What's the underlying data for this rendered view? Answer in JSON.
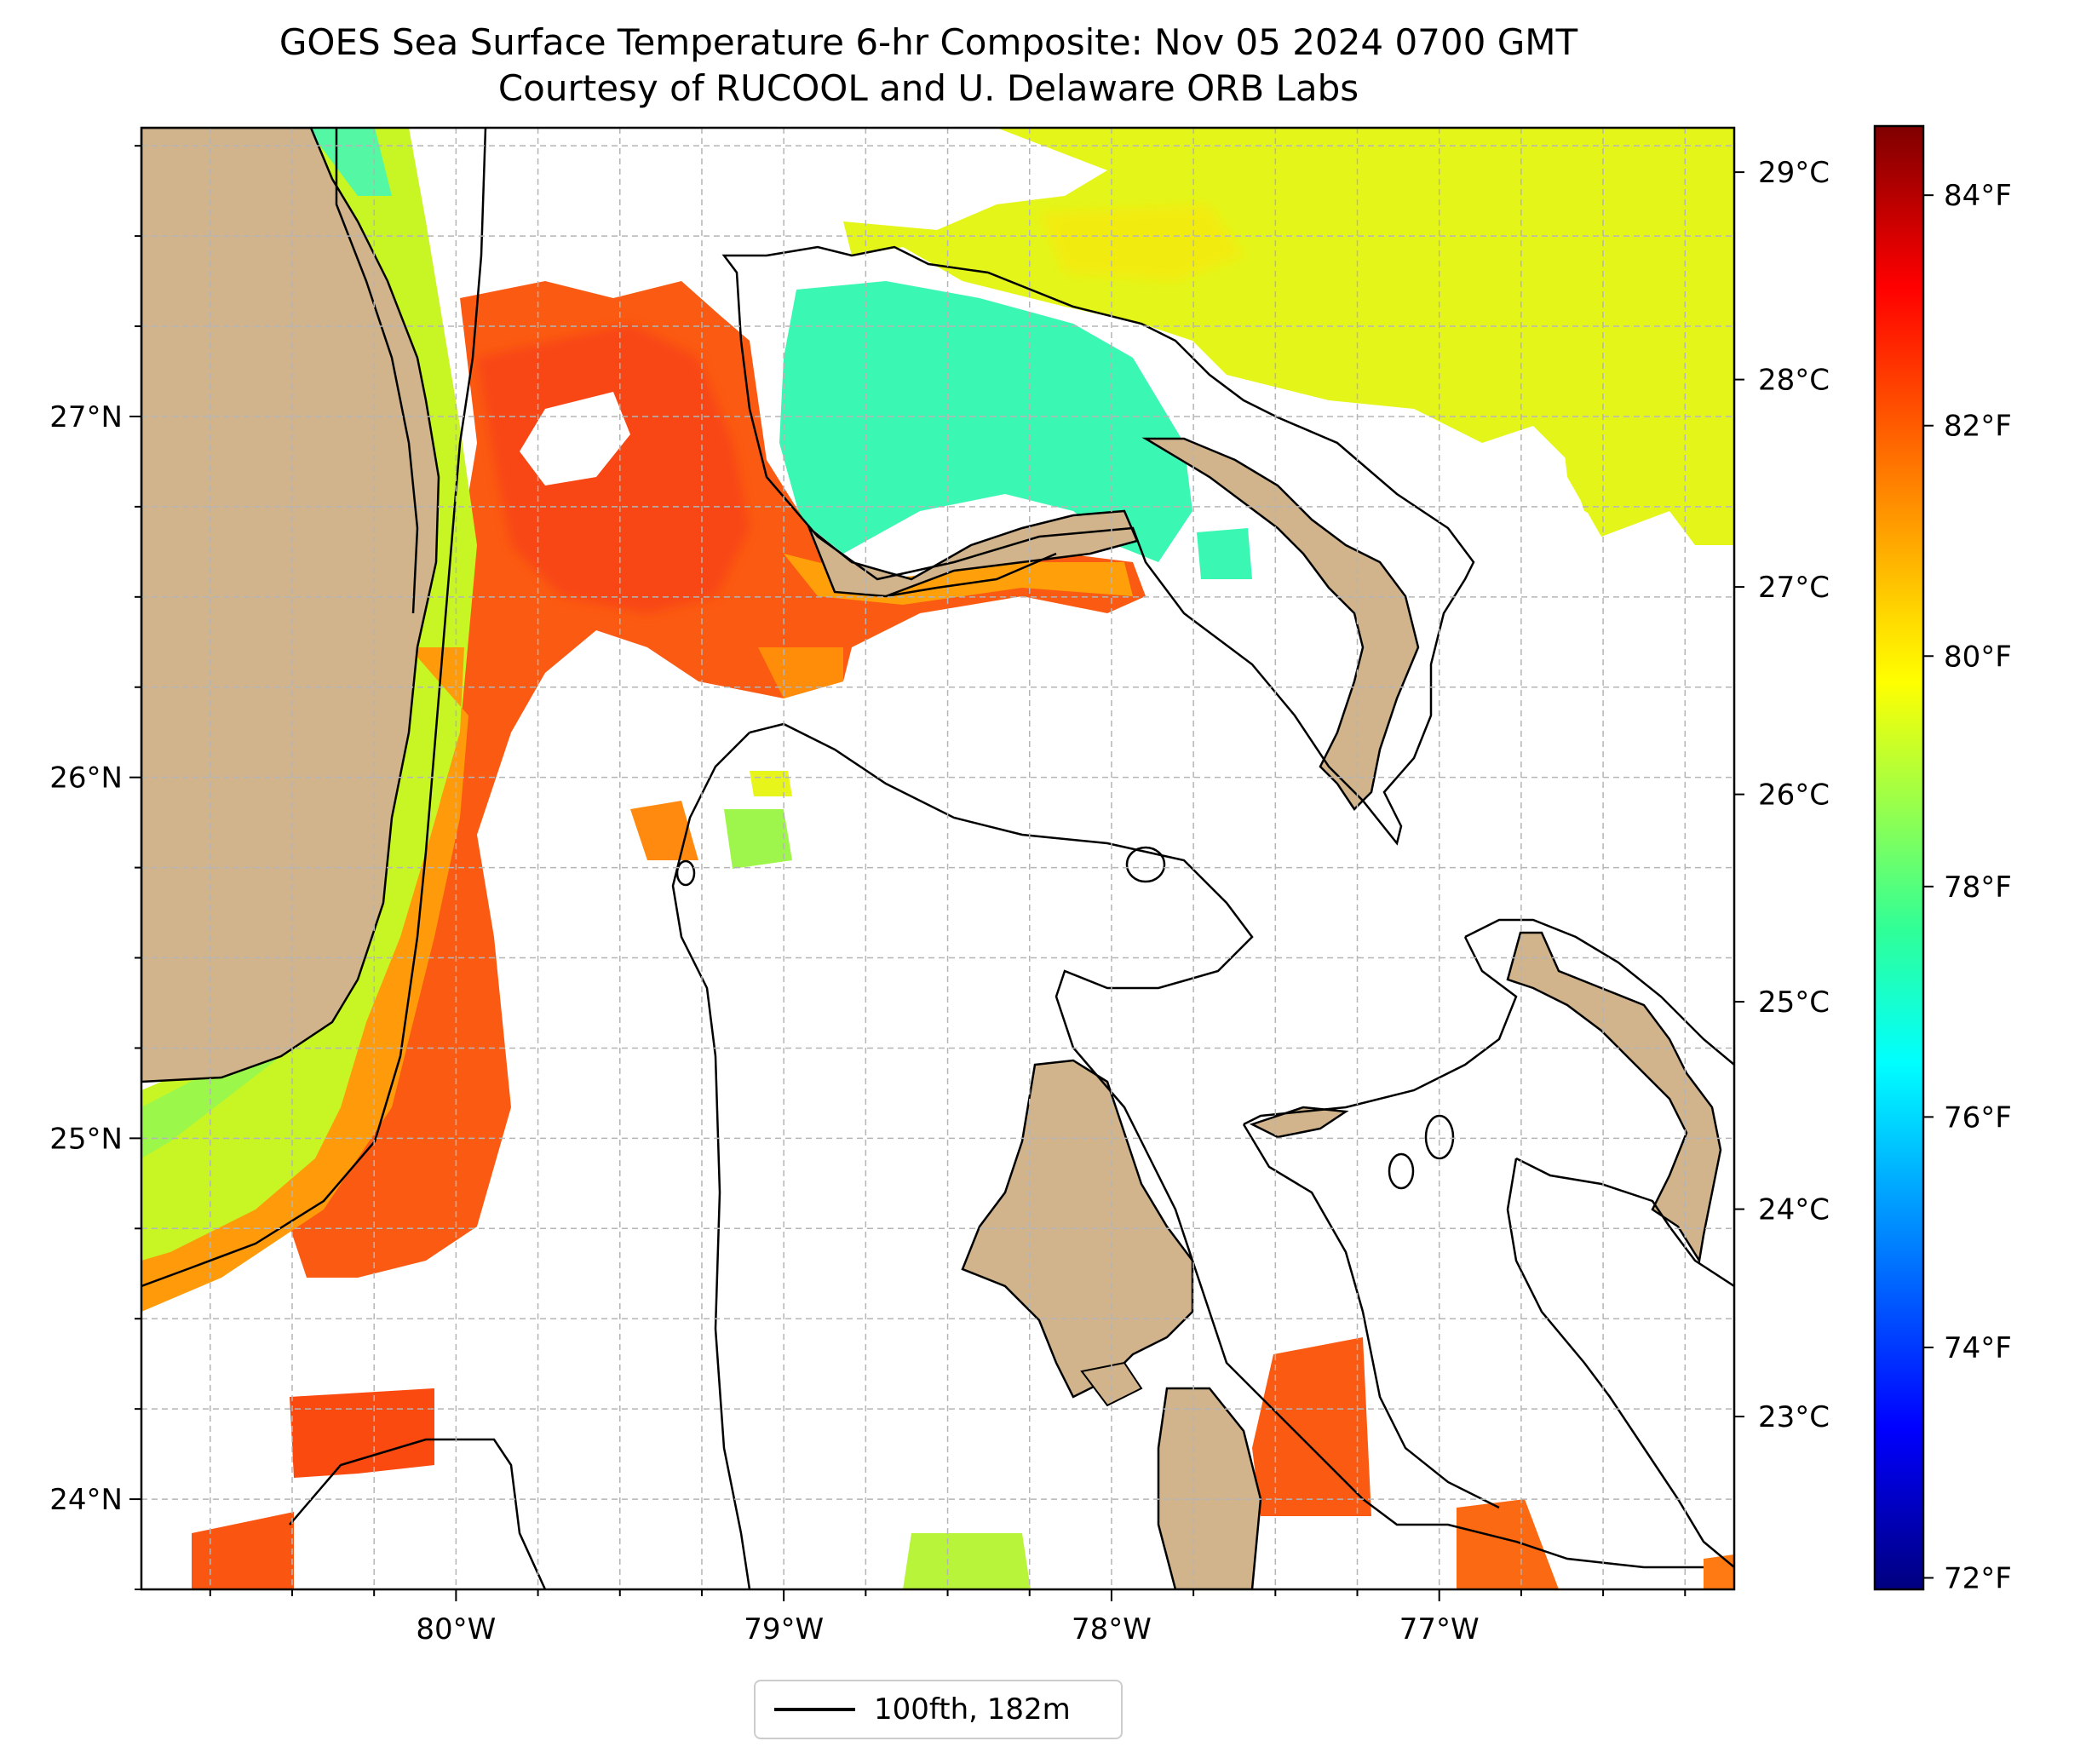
{
  "title": {
    "line1": "GOES Sea Surface Temperature 6-hr Composite: Nov 05 2024 0700 GMT",
    "line2": "Courtesy of RUCOOL and U. Delaware ORB Labs"
  },
  "map": {
    "lon_range": [
      -80.96,
      -76.1
    ],
    "lat_range": [
      23.75,
      27.8
    ],
    "grid": true,
    "colors": {
      "land": "#d2b48c",
      "coastline": "#000000",
      "no_data": "#ffffff"
    },
    "lon_ticks": [
      {
        "value": -80,
        "label": "80°W"
      },
      {
        "value": -79,
        "label": "79°W"
      },
      {
        "value": -78,
        "label": "78°W"
      },
      {
        "value": -77,
        "label": "77°W"
      }
    ],
    "lat_ticks": [
      {
        "value": 27,
        "label": "27°N"
      },
      {
        "value": 26,
        "label": "26°N"
      },
      {
        "value": 25,
        "label": "25°N"
      },
      {
        "value": 24,
        "label": "24°N"
      }
    ]
  },
  "colorbar": {
    "colormap": "jet",
    "range_f": [
      71.9,
      84.6
    ],
    "fahrenheit_ticks": [
      {
        "value": 72,
        "label": "72°F"
      },
      {
        "value": 74,
        "label": "74°F"
      },
      {
        "value": 76,
        "label": "76°F"
      },
      {
        "value": 78,
        "label": "78°F"
      },
      {
        "value": 80,
        "label": "80°F"
      },
      {
        "value": 82,
        "label": "82°F"
      },
      {
        "value": 84,
        "label": "84°F"
      }
    ],
    "celsius_ticks": [
      {
        "value": 23,
        "label": "23°C"
      },
      {
        "value": 24,
        "label": "24°C"
      },
      {
        "value": 25,
        "label": "25°C"
      },
      {
        "value": 26,
        "label": "26°C"
      },
      {
        "value": 27,
        "label": "27°C"
      },
      {
        "value": 28,
        "label": "28°C"
      },
      {
        "value": 29,
        "label": "29°C"
      }
    ]
  },
  "legend": {
    "label": "100fth, 182m",
    "line_color": "#000000"
  }
}
